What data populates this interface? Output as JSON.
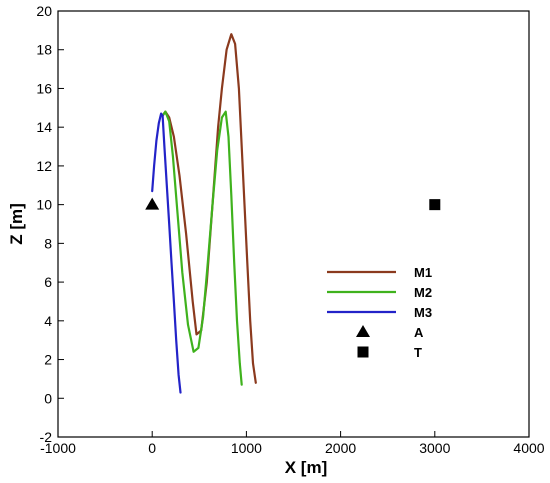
{
  "chart_data": {
    "type": "line",
    "xlabel": "X [m]",
    "ylabel": "Z [m]",
    "xlim": [
      -1000,
      4000
    ],
    "ylim": [
      -2,
      20
    ],
    "x_ticks": [
      "-1000",
      "0",
      "1000",
      "2000",
      "3000",
      "4000"
    ],
    "y_ticks": [
      "-2",
      "0",
      "2",
      "4",
      "6",
      "8",
      "10",
      "12",
      "14",
      "16",
      "18",
      "20"
    ],
    "grid": false,
    "legend_position": "right",
    "series": [
      {
        "name": "M1",
        "color": "#8b3a1e",
        "x": [
          110,
          140,
          180,
          230,
          290,
          360,
          430,
          470,
          520,
          580,
          640,
          700,
          740,
          790,
          840,
          880,
          920,
          950,
          980,
          1010,
          1040,
          1070,
          1100
        ],
        "y": [
          14.6,
          14.8,
          14.5,
          13.5,
          11.5,
          8.5,
          5.0,
          3.3,
          3.5,
          6.0,
          10.0,
          14.0,
          16.0,
          18.0,
          18.8,
          18.3,
          16.0,
          13.0,
          10.0,
          7.0,
          4.0,
          1.8,
          0.8
        ]
      },
      {
        "name": "M2",
        "color": "#3fb21d",
        "x": [
          110,
          140,
          180,
          220,
          270,
          320,
          380,
          440,
          490,
          540,
          590,
          640,
          690,
          740,
          780,
          810,
          840,
          870,
          900,
          930,
          950
        ],
        "y": [
          14.6,
          14.8,
          14.3,
          12.5,
          9.5,
          6.5,
          3.8,
          2.4,
          2.6,
          4.2,
          7.0,
          10.0,
          12.8,
          14.5,
          14.8,
          13.5,
          10.5,
          7.0,
          4.0,
          1.8,
          0.7
        ]
      },
      {
        "name": "M3",
        "color": "#2323c8",
        "x": [
          0,
          20,
          45,
          70,
          95,
          110,
          130,
          155,
          180,
          205,
          230,
          255,
          280,
          300
        ],
        "y": [
          10.7,
          12.0,
          13.3,
          14.2,
          14.7,
          14.6,
          13.0,
          11.0,
          9.0,
          7.0,
          5.0,
          3.0,
          1.2,
          0.3
        ]
      }
    ],
    "markers": [
      {
        "name": "A",
        "shape": "triangle",
        "x": 0,
        "y": 10,
        "color": "#000000"
      },
      {
        "name": "T",
        "shape": "square",
        "x": 3000,
        "y": 10,
        "color": "#000000"
      }
    ]
  }
}
